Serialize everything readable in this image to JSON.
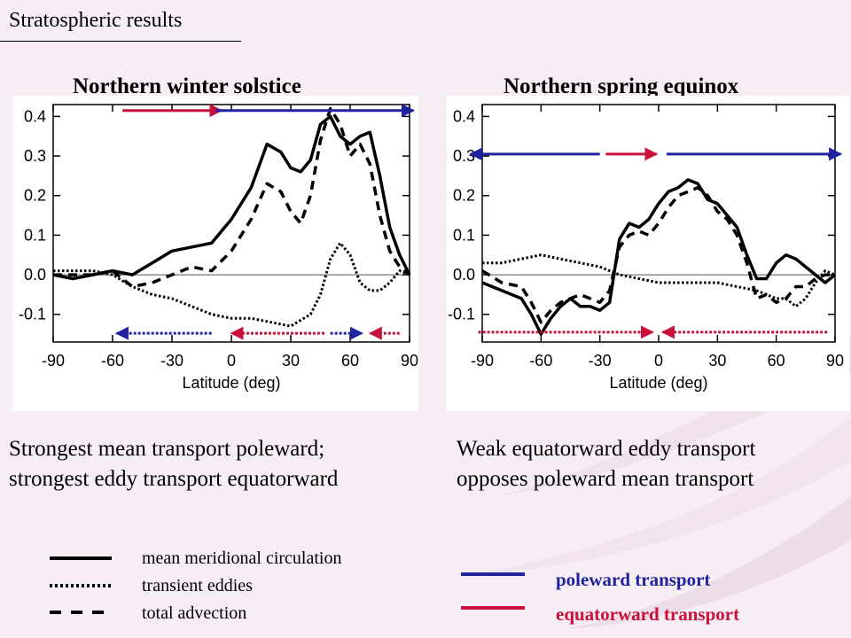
{
  "slide_title": "Stratospheric results",
  "colors": {
    "poleward": "#1f23a0",
    "equatorward": "#c8103a",
    "background": "#f7eef5",
    "accent_text": "#c8103a"
  },
  "panels": [
    {
      "title": "Northern winter solstice",
      "caption_lines": [
        "Strongest mean transport poleward;",
        "strongest eddy transport equatorward"
      ]
    },
    {
      "title": "Northern spring equinox",
      "caption_lines": [
        "Weak equatorward eddy transport",
        "opposes poleward mean transport"
      ]
    }
  ],
  "legend": {
    "mean": "mean meridional circulation",
    "eddies": "transient eddies",
    "total": "total advection",
    "poleward": "poleward transport",
    "equatorward": "equatorward transport"
  },
  "chart_data": [
    {
      "type": "line",
      "title": "Northern winter solstice",
      "xlabel": "Latitude (deg)",
      "ylabel": "",
      "xlim": [
        -90,
        90
      ],
      "ylim": [
        -0.17,
        0.43
      ],
      "xticks": [
        -90,
        -60,
        -30,
        0,
        30,
        60,
        90
      ],
      "yticks": [
        -0.1,
        0.0,
        0.1,
        0.2,
        0.3,
        0.4
      ],
      "ytick_labels": [
        "-0.1",
        "0.0",
        "0.1",
        "0.2",
        "0.3",
        "0.4"
      ],
      "zero_line": true,
      "series": [
        {
          "name": "mean meridional circulation",
          "style": "solid",
          "x": [
            -90,
            -80,
            -70,
            -60,
            -50,
            -40,
            -30,
            -20,
            -10,
            0,
            10,
            18,
            25,
            30,
            35,
            40,
            45,
            50,
            55,
            60,
            65,
            70,
            75,
            80,
            85,
            90
          ],
          "y": [
            0.0,
            -0.01,
            0.0,
            0.01,
            0.0,
            0.03,
            0.06,
            0.07,
            0.08,
            0.14,
            0.22,
            0.33,
            0.31,
            0.27,
            0.26,
            0.29,
            0.38,
            0.4,
            0.35,
            0.33,
            0.35,
            0.36,
            0.25,
            0.12,
            0.05,
            0.0
          ]
        },
        {
          "name": "transient eddies",
          "style": "dotted",
          "x": [
            -90,
            -80,
            -70,
            -60,
            -50,
            -40,
            -30,
            -20,
            -10,
            0,
            10,
            20,
            30,
            40,
            45,
            50,
            55,
            60,
            65,
            70,
            75,
            80,
            85,
            90
          ],
          "y": [
            0.01,
            0.01,
            0.01,
            0.0,
            -0.03,
            -0.05,
            -0.06,
            -0.08,
            -0.1,
            -0.11,
            -0.11,
            -0.12,
            -0.13,
            -0.1,
            -0.05,
            0.04,
            0.08,
            0.05,
            -0.02,
            -0.04,
            -0.04,
            -0.02,
            0.01,
            0.0
          ]
        },
        {
          "name": "total advection",
          "style": "dashed",
          "x": [
            -90,
            -80,
            -70,
            -60,
            -50,
            -40,
            -30,
            -20,
            -10,
            0,
            10,
            18,
            25,
            30,
            35,
            40,
            45,
            50,
            55,
            60,
            65,
            70,
            75,
            80,
            85,
            90
          ],
          "y": [
            0.0,
            0.0,
            0.0,
            0.01,
            -0.03,
            -0.02,
            0.0,
            0.02,
            0.01,
            0.06,
            0.14,
            0.23,
            0.21,
            0.16,
            0.13,
            0.2,
            0.34,
            0.42,
            0.38,
            0.3,
            0.33,
            0.28,
            0.15,
            0.06,
            0.02,
            0.0
          ]
        }
      ],
      "arrows": [
        {
          "from": -55,
          "to": -5,
          "y": 0.415,
          "kind": "equatorward",
          "style": "solid"
        },
        {
          "from": -8,
          "to": 92,
          "y": 0.415,
          "kind": "poleward",
          "style": "solid"
        },
        {
          "from": -10,
          "to": -58,
          "y": -0.148,
          "kind": "poleward",
          "style": "dotted"
        },
        {
          "from": 47,
          "to": 0,
          "y": -0.148,
          "kind": "equatorward",
          "style": "dotted"
        },
        {
          "from": 50,
          "to": 66,
          "y": -0.148,
          "kind": "poleward",
          "style": "dotted"
        },
        {
          "from": 85,
          "to": 70,
          "y": -0.148,
          "kind": "equatorward",
          "style": "dotted"
        }
      ]
    },
    {
      "type": "line",
      "title": "Northern spring equinox",
      "xlabel": "Latitude (deg)",
      "ylabel": "",
      "xlim": [
        -90,
        90
      ],
      "ylim": [
        -0.17,
        0.43
      ],
      "xticks": [
        -90,
        -60,
        -30,
        0,
        30,
        60,
        90
      ],
      "yticks": [
        -0.1,
        0.0,
        0.1,
        0.2,
        0.3,
        0.4
      ],
      "ytick_labels": [
        "-0.1",
        "0.0",
        "0.1",
        "0.2",
        "0.3",
        "0.4"
      ],
      "zero_line": true,
      "series": [
        {
          "name": "mean meridional circulation",
          "style": "solid",
          "x": [
            -90,
            -80,
            -70,
            -65,
            -60,
            -55,
            -50,
            -45,
            -40,
            -35,
            -30,
            -25,
            -20,
            -15,
            -10,
            -5,
            0,
            5,
            10,
            15,
            20,
            25,
            30,
            35,
            40,
            45,
            50,
            55,
            60,
            65,
            70,
            75,
            80,
            85,
            90
          ],
          "y": [
            -0.02,
            -0.04,
            -0.06,
            -0.1,
            -0.15,
            -0.11,
            -0.08,
            -0.06,
            -0.08,
            -0.08,
            -0.09,
            -0.07,
            0.09,
            0.13,
            0.12,
            0.14,
            0.18,
            0.21,
            0.22,
            0.24,
            0.23,
            0.19,
            0.18,
            0.15,
            0.12,
            0.05,
            -0.01,
            -0.01,
            0.03,
            0.05,
            0.04,
            0.02,
            0.0,
            -0.02,
            0.0
          ]
        },
        {
          "name": "transient eddies",
          "style": "dotted",
          "x": [
            -90,
            -80,
            -70,
            -60,
            -50,
            -40,
            -30,
            -20,
            -10,
            0,
            10,
            20,
            30,
            40,
            50,
            55,
            60,
            65,
            70,
            75,
            80,
            85,
            90
          ],
          "y": [
            0.03,
            0.03,
            0.04,
            0.05,
            0.04,
            0.03,
            0.02,
            0.0,
            -0.01,
            -0.02,
            -0.02,
            -0.02,
            -0.02,
            -0.03,
            -0.04,
            -0.05,
            -0.06,
            -0.06,
            -0.08,
            -0.06,
            -0.02,
            0.01,
            0.0
          ]
        },
        {
          "name": "total advection",
          "style": "dashed",
          "x": [
            -90,
            -80,
            -70,
            -65,
            -60,
            -55,
            -50,
            -45,
            -40,
            -35,
            -30,
            -25,
            -20,
            -15,
            -10,
            -5,
            0,
            5,
            10,
            15,
            20,
            25,
            30,
            35,
            40,
            45,
            50,
            55,
            60,
            65,
            70,
            75,
            80,
            85,
            90
          ],
          "y": [
            0.01,
            -0.02,
            -0.03,
            -0.07,
            -0.12,
            -0.09,
            -0.07,
            -0.06,
            -0.05,
            -0.06,
            -0.07,
            -0.04,
            0.07,
            0.1,
            0.11,
            0.1,
            0.13,
            0.17,
            0.2,
            0.21,
            0.22,
            0.2,
            0.16,
            0.14,
            0.1,
            0.03,
            -0.06,
            -0.05,
            -0.07,
            -0.06,
            -0.03,
            -0.03,
            -0.01,
            0.0,
            0.0
          ]
        }
      ],
      "arrows": [
        {
          "from": -30,
          "to": -96,
          "y": 0.305,
          "kind": "poleward",
          "style": "solid"
        },
        {
          "from": -27,
          "to": -1,
          "y": 0.305,
          "kind": "equatorward",
          "style": "solid"
        },
        {
          "from": 4,
          "to": 93,
          "y": 0.305,
          "kind": "poleward",
          "style": "solid"
        },
        {
          "from": -92,
          "to": -3,
          "y": -0.145,
          "kind": "equatorward",
          "style": "dotted"
        },
        {
          "from": 86,
          "to": 2,
          "y": -0.145,
          "kind": "equatorward",
          "style": "dotted"
        }
      ]
    }
  ]
}
